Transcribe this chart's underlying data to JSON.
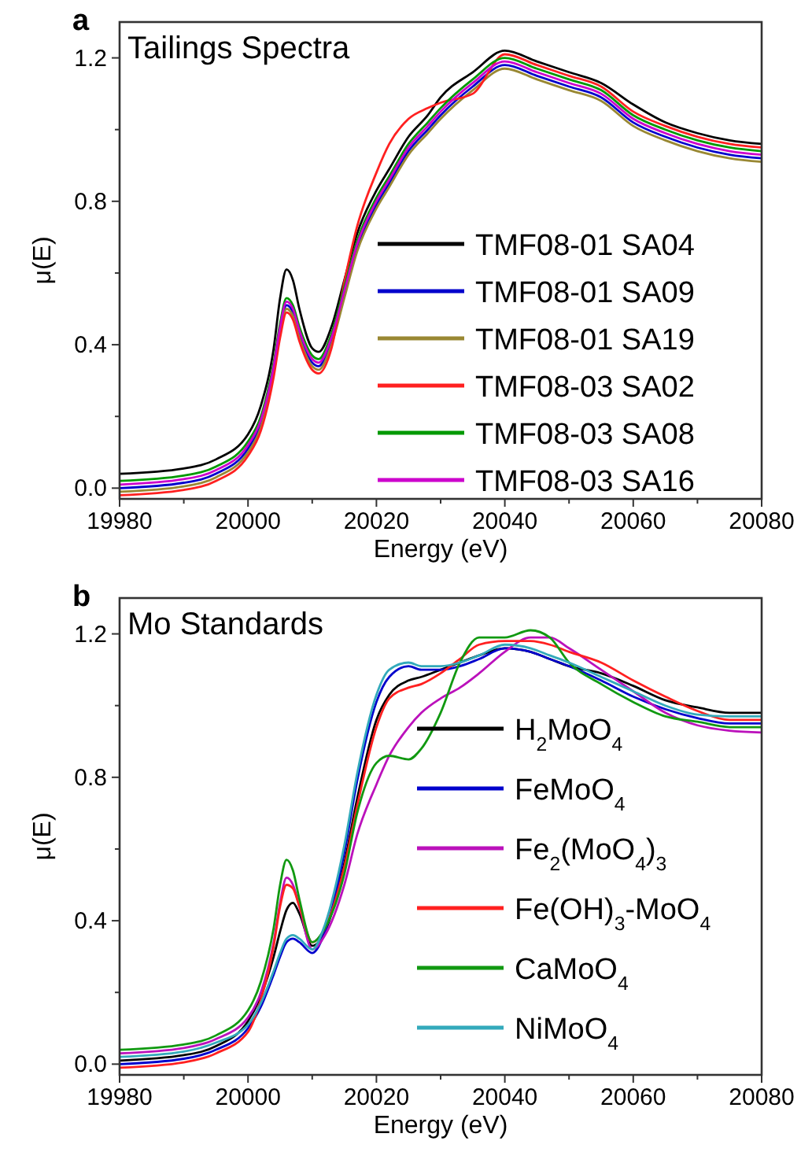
{
  "chart_data": [
    {
      "type": "line",
      "title": "Tailings Spectra",
      "annotations": [
        "a"
      ],
      "xlabel": "Energy (eV)",
      "ylabel": "μ(E)",
      "xlim": [
        19980,
        20080
      ],
      "ylim": [
        -0.03,
        1.3
      ],
      "xticks": [
        19980,
        {
          "value": 19990,
          "label": null
        },
        20000,
        {
          "value": 20010,
          "label": null
        },
        20020,
        {
          "value": 20030,
          "label": null
        },
        20040,
        {
          "value": 20050,
          "label": null
        },
        20060,
        {
          "value": 20070,
          "label": null
        },
        20080
      ],
      "yticks": [
        {
          "value": 0,
          "label": "0.0"
        },
        {
          "value": 0.2,
          "label": null
        },
        0.4,
        {
          "value": 0.6,
          "label": null
        },
        0.8,
        {
          "value": 1.0,
          "label": null
        },
        1.2
      ],
      "grid": false,
      "legend": "bottom right",
      "marker": "none",
      "line_style": "solid",
      "x": [
        19980,
        19990,
        19995,
        20000,
        20002,
        20004,
        20005,
        20006,
        20007,
        20008,
        20010,
        20011,
        20013,
        20015,
        20017,
        20020,
        20022,
        20025,
        20028,
        20030,
        20035,
        20040,
        20045,
        20050,
        20055,
        20060,
        20065,
        20070,
        20075,
        20080
      ],
      "series": [
        {
          "name": "TMF08-01 SA04",
          "color": "#000000",
          "values": [
            0.04,
            0.055,
            0.08,
            0.15,
            0.23,
            0.39,
            0.53,
            0.61,
            0.58,
            0.5,
            0.39,
            0.38,
            0.45,
            0.58,
            0.71,
            0.83,
            0.89,
            0.98,
            1.04,
            1.09,
            1.16,
            1.22,
            1.19,
            1.16,
            1.13,
            1.07,
            1.02,
            0.99,
            0.97,
            0.96
          ]
        },
        {
          "name": "TMF08-01 SA09",
          "color": "#0000cc",
          "values": [
            0.0,
            0.015,
            0.04,
            0.11,
            0.18,
            0.33,
            0.44,
            0.51,
            0.49,
            0.43,
            0.35,
            0.34,
            0.41,
            0.54,
            0.67,
            0.79,
            0.85,
            0.94,
            1.0,
            1.04,
            1.12,
            1.18,
            1.15,
            1.12,
            1.09,
            1.02,
            0.98,
            0.95,
            0.93,
            0.92
          ]
        },
        {
          "name": "TMF08-01 SA19",
          "color": "#998833",
          "values": [
            -0.01,
            0.005,
            0.03,
            0.1,
            0.17,
            0.32,
            0.43,
            0.5,
            0.48,
            0.42,
            0.34,
            0.33,
            0.4,
            0.53,
            0.66,
            0.78,
            0.84,
            0.93,
            0.99,
            1.03,
            1.11,
            1.17,
            1.14,
            1.11,
            1.08,
            1.01,
            0.97,
            0.94,
            0.92,
            0.91
          ]
        },
        {
          "name": "TMF08-03 SA02",
          "color": "#ff2020",
          "values": [
            -0.02,
            -0.005,
            0.02,
            0.09,
            0.16,
            0.31,
            0.42,
            0.49,
            0.47,
            0.41,
            0.33,
            0.32,
            0.39,
            0.575,
            0.73,
            0.88,
            0.96,
            1.03,
            1.06,
            1.075,
            1.1,
            1.21,
            1.18,
            1.15,
            1.12,
            1.05,
            1.01,
            0.98,
            0.96,
            0.95
          ]
        },
        {
          "name": "TMF08-03 SA08",
          "color": "#009900",
          "values": [
            0.02,
            0.035,
            0.06,
            0.13,
            0.2,
            0.35,
            0.46,
            0.53,
            0.51,
            0.45,
            0.37,
            0.36,
            0.43,
            0.56,
            0.69,
            0.81,
            0.87,
            0.96,
            1.02,
            1.06,
            1.14,
            1.2,
            1.17,
            1.14,
            1.11,
            1.04,
            1.0,
            0.97,
            0.95,
            0.94
          ]
        },
        {
          "name": "TMF08-03 SA16",
          "color": "#cc00cc",
          "values": [
            0.01,
            0.025,
            0.05,
            0.12,
            0.19,
            0.34,
            0.45,
            0.52,
            0.5,
            0.44,
            0.36,
            0.35,
            0.42,
            0.55,
            0.68,
            0.8,
            0.86,
            0.95,
            1.01,
            1.05,
            1.13,
            1.19,
            1.16,
            1.13,
            1.1,
            1.03,
            0.99,
            0.96,
            0.94,
            0.93
          ]
        }
      ]
    },
    {
      "type": "line",
      "title": "Mo Standards",
      "annotations": [
        "b"
      ],
      "xlabel": "Energy (eV)",
      "ylabel": "μ(E)",
      "xlim": [
        19980,
        20080
      ],
      "ylim": [
        -0.03,
        1.3
      ],
      "xticks": [
        19980,
        {
          "value": 19990,
          "label": null
        },
        20000,
        {
          "value": 20010,
          "label": null
        },
        20020,
        {
          "value": 20030,
          "label": null
        },
        20040,
        {
          "value": 20050,
          "label": null
        },
        20060,
        {
          "value": 20070,
          "label": null
        },
        20080
      ],
      "yticks": [
        {
          "value": 0,
          "label": "0.0"
        },
        {
          "value": 0.2,
          "label": null
        },
        0.4,
        {
          "value": 0.6,
          "label": null
        },
        0.8,
        {
          "value": 1.0,
          "label": null
        },
        1.2
      ],
      "grid": false,
      "legend": "right",
      "marker": "none",
      "line_style": "solid",
      "x": [
        19980,
        19990,
        19995,
        20000,
        20002,
        20004,
        20005,
        20006,
        20007,
        20008,
        20010,
        20012,
        20015,
        20017,
        20020,
        20022,
        20025,
        20027,
        20030,
        20033,
        20036,
        20040,
        20044,
        20047,
        20050,
        20055,
        20060,
        20065,
        20070,
        20075,
        20080
      ],
      "series": [
        {
          "name": "H$_{2}$MoO$_{4}$",
          "color": "#000000",
          "values": [
            0.01,
            0.025,
            0.05,
            0.12,
            0.19,
            0.3,
            0.37,
            0.43,
            0.45,
            0.42,
            0.33,
            0.37,
            0.56,
            0.74,
            0.96,
            1.03,
            1.07,
            1.08,
            1.1,
            1.12,
            1.14,
            1.16,
            1.15,
            1.13,
            1.11,
            1.09,
            1.055,
            1.015,
            0.995,
            0.98,
            0.98
          ]
        },
        {
          "name": "FeMoO$_{4}$",
          "color": "#0000cc",
          "values": [
            0.0,
            0.015,
            0.04,
            0.1,
            0.16,
            0.25,
            0.3,
            0.34,
            0.35,
            0.34,
            0.31,
            0.37,
            0.59,
            0.79,
            1.01,
            1.08,
            1.11,
            1.1,
            1.1,
            1.11,
            1.13,
            1.16,
            1.15,
            1.13,
            1.11,
            1.07,
            1.025,
            0.99,
            0.965,
            0.95,
            0.95
          ]
        },
        {
          "name": "Fe$_{2}$(MoO$_{4}$)$_{3}$",
          "color": "#bb11bb",
          "values": [
            0.03,
            0.045,
            0.07,
            0.13,
            0.2,
            0.34,
            0.45,
            0.52,
            0.5,
            0.44,
            0.32,
            0.36,
            0.5,
            0.64,
            0.78,
            0.86,
            0.94,
            0.98,
            1.02,
            1.05,
            1.09,
            1.15,
            1.19,
            1.19,
            1.16,
            1.1,
            1.04,
            0.98,
            0.945,
            0.93,
            0.925
          ]
        },
        {
          "name": "Fe(OH)$_{3}$-MoO$_{4}$",
          "color": "#ff2020",
          "values": [
            -0.01,
            0.005,
            0.03,
            0.09,
            0.18,
            0.33,
            0.44,
            0.5,
            0.49,
            0.44,
            0.34,
            0.38,
            0.55,
            0.72,
            0.94,
            1.02,
            1.05,
            1.06,
            1.09,
            1.13,
            1.17,
            1.18,
            1.18,
            1.17,
            1.15,
            1.12,
            1.07,
            1.025,
            0.985,
            0.96,
            0.96
          ]
        },
        {
          "name": "CaMoO$_{4}$",
          "color": "#119911",
          "values": [
            0.04,
            0.055,
            0.08,
            0.15,
            0.23,
            0.38,
            0.5,
            0.57,
            0.54,
            0.46,
            0.34,
            0.38,
            0.53,
            0.7,
            0.84,
            0.86,
            0.85,
            0.88,
            0.98,
            1.12,
            1.19,
            1.19,
            1.21,
            1.19,
            1.12,
            1.06,
            1.01,
            0.97,
            0.955,
            0.94,
            0.94
          ]
        },
        {
          "name": "NiMoO$_{4}$",
          "color": "#33aabb",
          "values": [
            0.02,
            0.035,
            0.06,
            0.11,
            0.17,
            0.26,
            0.31,
            0.35,
            0.36,
            0.35,
            0.32,
            0.39,
            0.61,
            0.81,
            1.03,
            1.1,
            1.12,
            1.11,
            1.11,
            1.12,
            1.14,
            1.17,
            1.16,
            1.14,
            1.12,
            1.08,
            1.04,
            1.0,
            0.975,
            0.97,
            0.97
          ]
        }
      ]
    }
  ]
}
